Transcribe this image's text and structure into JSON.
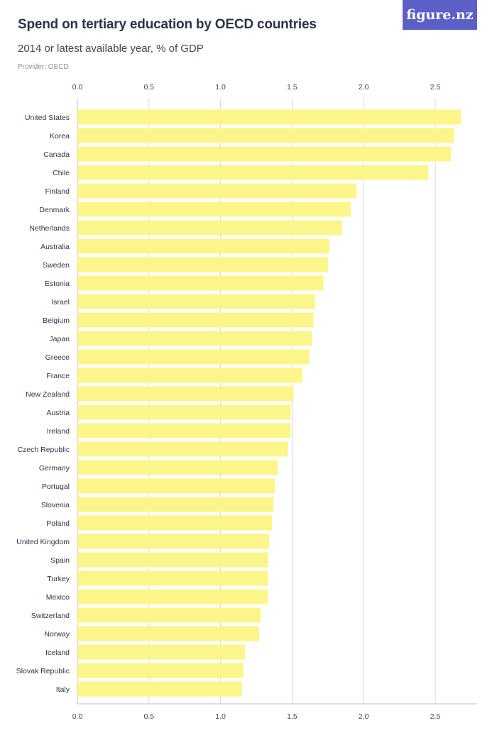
{
  "header": {
    "title": "Spend on tertiary education by OECD countries",
    "subtitle": "2014 or latest available year, % of GDP",
    "provider": "Provider: OECD",
    "logo": "figure.nz"
  },
  "colors": {
    "bar": "#fbf58a",
    "grid": "#d9d9d9",
    "logo_bg": "#5b5fc7"
  },
  "chart_data": {
    "type": "bar",
    "orientation": "horizontal",
    "title": "Spend on tertiary education by OECD countries",
    "subtitle": "2014 or latest available year, % of GDP",
    "xlim": [
      0,
      2.8
    ],
    "ticks": [
      "0.0",
      "0.5",
      "1.0",
      "1.5",
      "2.0",
      "2.5"
    ],
    "tick_values": [
      0,
      0.5,
      1.0,
      1.5,
      2.0,
      2.5
    ],
    "grid": true,
    "categories": [
      "United States",
      "Korea",
      "Canada",
      "Chile",
      "Finland",
      "Denmark",
      "Netherlands",
      "Australia",
      "Sweden",
      "Estonia",
      "Israel",
      "Belgium",
      "Japan",
      "Greece",
      "France",
      "New Zealand",
      "Austria",
      "Ireland",
      "Czech Republic",
      "Germany",
      "Portugal",
      "Slovenia",
      "Poland",
      "United Kingdom",
      "Spain",
      "Turkey",
      "Mexico",
      "Switzerland",
      "Norway",
      "Iceland",
      "Slovak Republic",
      "Italy"
    ],
    "values": [
      2.68,
      2.63,
      2.61,
      2.45,
      1.95,
      1.91,
      1.85,
      1.76,
      1.75,
      1.72,
      1.66,
      1.65,
      1.64,
      1.62,
      1.57,
      1.51,
      1.49,
      1.49,
      1.47,
      1.4,
      1.38,
      1.37,
      1.36,
      1.34,
      1.33,
      1.33,
      1.33,
      1.28,
      1.27,
      1.17,
      1.16,
      1.15
    ]
  }
}
